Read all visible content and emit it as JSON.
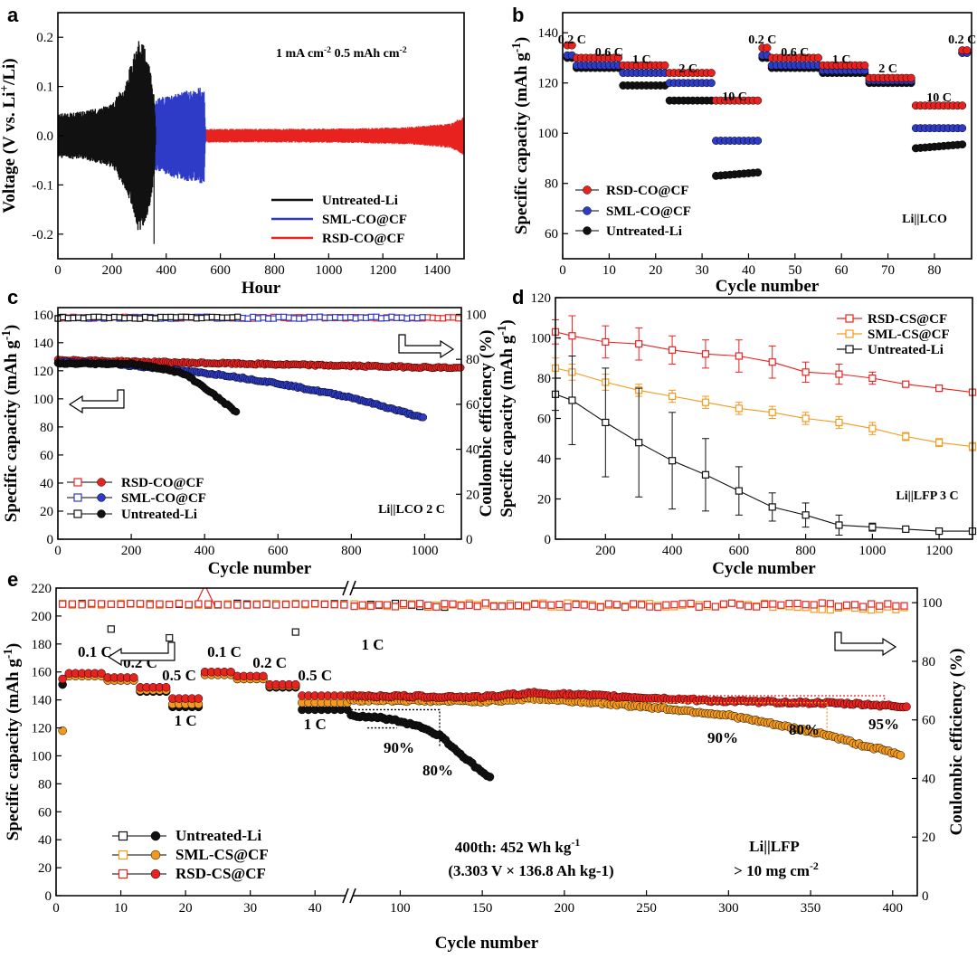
{
  "colors": {
    "red": "#e8231f",
    "blue": "#2e3bc7",
    "black": "#111111",
    "orange": "#f39a1e",
    "redText": "#e8231f",
    "orangeText": "#f39a1e"
  },
  "chart_data": [
    {
      "panel": "a",
      "type": "line",
      "title": "",
      "xlabel": "Hour",
      "ylabel": "Voltage (V vs. Li+/Li)",
      "xlim": [
        0,
        1500
      ],
      "ylim": [
        -0.25,
        0.25
      ],
      "xticks": [
        0,
        200,
        400,
        600,
        800,
        1000,
        1200,
        1400
      ],
      "yticks": [
        -0.2,
        -0.1,
        0.0,
        0.1,
        0.2
      ],
      "conditions": "1 mA cm-2 0.5 mAh cm-2",
      "series": [
        {
          "name": "Untreated-Li",
          "color": "#111111",
          "envelope": [
            [
              0,
              0.045
            ],
            [
              100,
              0.05
            ],
            [
              200,
              0.065
            ],
            [
              250,
              0.11
            ],
            [
              300,
              0.2
            ],
            [
              330,
              0.17
            ],
            [
              355,
              0.09
            ],
            [
              360,
              0.02
            ]
          ]
        },
        {
          "name": "SML-CO@CF",
          "color": "#2e3bc7",
          "envelope": [
            [
              0,
              0.03
            ],
            [
              200,
              0.035
            ],
            [
              330,
              0.06
            ],
            [
              360,
              0.075
            ],
            [
              420,
              0.085
            ],
            [
              500,
              0.095
            ],
            [
              540,
              0.1
            ],
            [
              545,
              0.01
            ]
          ]
        },
        {
          "name": "RSD-CO@CF",
          "color": "#e8231f",
          "envelope": [
            [
              0,
              0.015
            ],
            [
              400,
              0.014
            ],
            [
              800,
              0.014
            ],
            [
              1100,
              0.015
            ],
            [
              1300,
              0.018
            ],
            [
              1450,
              0.025
            ],
            [
              1500,
              0.04
            ]
          ]
        }
      ]
    },
    {
      "panel": "b",
      "type": "scatter",
      "title": "",
      "xlabel": "Cycle number",
      "ylabel": "Specific capacity (mAh g-1)",
      "xlim": [
        0,
        88
      ],
      "ylim": [
        50,
        148
      ],
      "xticks": [
        0,
        10,
        20,
        30,
        40,
        50,
        60,
        70,
        80
      ],
      "yticks": [
        60,
        80,
        100,
        120,
        140
      ],
      "annotation": "Li||LCO",
      "rate_labels": [
        "0.2 C",
        "0.6 C",
        "1 C",
        "2 C",
        "10 C",
        "0.2 C",
        "0.6 C",
        "1 C",
        "2 C",
        "10 C",
        "0.2 C"
      ],
      "series": [
        {
          "name": "RSD-CO@CF",
          "color": "#e8231f",
          "segments": [
            [
              1,
              2,
              135
            ],
            [
              3,
              12,
              130
            ],
            [
              13,
              22,
              127
            ],
            [
              23,
              32,
              124
            ],
            [
              33,
              42,
              113
            ],
            [
              43,
              44,
              134
            ],
            [
              45,
              55,
              130
            ],
            [
              56,
              65,
              127
            ],
            [
              66,
              75,
              122
            ],
            [
              76,
              86,
              111
            ],
            [
              86,
              87,
              133
            ]
          ]
        },
        {
          "name": "SML-CO@CF",
          "color": "#2e3bc7",
          "segments": [
            [
              1,
              2,
              131
            ],
            [
              3,
              12,
              127
            ],
            [
              13,
              22,
              124
            ],
            [
              23,
              32,
              120
            ],
            [
              33,
              42,
              97
            ],
            [
              43,
              44,
              131
            ],
            [
              45,
              55,
              127
            ],
            [
              56,
              65,
              125
            ],
            [
              66,
              75,
              121
            ],
            [
              76,
              86,
              102
            ],
            [
              86,
              87,
              132
            ]
          ]
        },
        {
          "name": "Untreated-Li",
          "color": "#111111",
          "segments": [
            [
              1,
              2,
              130
            ],
            [
              3,
              12,
              126
            ],
            [
              13,
              22,
              119
            ],
            [
              23,
              32,
              113
            ],
            [
              33,
              42,
              83
            ],
            [
              43,
              44,
              130
            ],
            [
              45,
              55,
              126
            ],
            [
              56,
              65,
              124
            ],
            [
              66,
              75,
              120
            ],
            [
              76,
              86,
              94
            ],
            [
              86,
              87,
              132
            ]
          ]
        }
      ]
    },
    {
      "panel": "c",
      "type": "scatter",
      "title": "",
      "xlabel": "Cycle number",
      "ylabel": "Specific capacity (mAh g-1)",
      "y2label": "Coulombic efficiency (%)",
      "xlim": [
        0,
        1100
      ],
      "ylim": [
        0,
        165
      ],
      "y2lim": [
        0,
        103
      ],
      "xticks": [
        0,
        200,
        400,
        600,
        800,
        1000
      ],
      "yticks": [
        0,
        20,
        40,
        60,
        80,
        100,
        120,
        140,
        160
      ],
      "y2ticks": [
        0,
        20,
        40,
        60,
        80,
        100
      ],
      "annotation": "Li||LCO 2 C",
      "series": [
        {
          "name": "RSD-CO@CF",
          "color": "#e8231f",
          "capacity": [
            [
              0,
              128
            ],
            [
              100,
              127
            ],
            [
              300,
              126
            ],
            [
              500,
              125
            ],
            [
              700,
              124
            ],
            [
              900,
              123
            ],
            [
              1100,
              122
            ]
          ],
          "ce_end": 1100
        },
        {
          "name": "SML-CO@CF",
          "color": "#2e3bc7",
          "capacity": [
            [
              0,
              126
            ],
            [
              150,
              125
            ],
            [
              300,
              121
            ],
            [
              450,
              117
            ],
            [
              600,
              111
            ],
            [
              800,
              101
            ],
            [
              950,
              90
            ],
            [
              1000,
              86
            ]
          ],
          "ce_end": 1000
        },
        {
          "name": "Untreated-Li",
          "color": "#111111",
          "capacity": [
            [
              0,
              125
            ],
            [
              200,
              125
            ],
            [
              300,
              121
            ],
            [
              350,
              117
            ],
            [
              400,
              108
            ],
            [
              450,
              98
            ],
            [
              490,
              90
            ]
          ],
          "ce_end": 500
        }
      ]
    },
    {
      "panel": "d",
      "type": "line",
      "title": "",
      "xlabel": "Cycle number",
      "ylabel": "Specific capacity (mAh g-1)",
      "xlim": [
        50,
        1300
      ],
      "ylim": [
        0,
        120
      ],
      "xticks": [
        200,
        400,
        600,
        800,
        1000,
        1200
      ],
      "yticks": [
        0,
        20,
        40,
        60,
        80,
        100,
        120
      ],
      "annotation": "Li||LFP 3 C",
      "series": [
        {
          "name": "RSD-CS@CF",
          "color": "#e8231f",
          "x": [
            50,
            100,
            200,
            300,
            400,
            500,
            600,
            700,
            800,
            900,
            1000,
            1100,
            1200,
            1300
          ],
          "y": [
            103,
            101,
            98,
            97,
            94,
            92,
            91,
            88,
            83,
            82,
            80,
            77,
            75,
            73
          ],
          "err": [
            6,
            10,
            8,
            8,
            7,
            7,
            8,
            8,
            5,
            5,
            3,
            1,
            1,
            1
          ]
        },
        {
          "name": "SML-CS@CF",
          "color": "#f39a1e",
          "x": [
            50,
            100,
            200,
            300,
            400,
            500,
            600,
            700,
            800,
            900,
            1000,
            1100,
            1200,
            1300
          ],
          "y": [
            85,
            83,
            78,
            74,
            71,
            68,
            65,
            63,
            60,
            58,
            55,
            51,
            48,
            46
          ],
          "err": [
            5,
            4,
            4,
            3,
            3,
            3,
            3,
            3,
            3,
            3,
            3,
            2,
            2,
            2
          ]
        },
        {
          "name": "Untreated-Li",
          "color": "#111111",
          "x": [
            50,
            100,
            200,
            300,
            400,
            500,
            600,
            700,
            800,
            900,
            1000,
            1100,
            1200,
            1300
          ],
          "y": [
            72,
            69,
            58,
            48,
            39,
            32,
            24,
            16,
            12,
            7,
            6,
            5,
            4,
            4
          ],
          "err": [
            8,
            22,
            27,
            27,
            24,
            18,
            12,
            7,
            6,
            5,
            2,
            1,
            1,
            1
          ]
        }
      ]
    },
    {
      "panel": "e",
      "type": "scatter",
      "title": "",
      "xlabel": "Cycle number",
      "ylabel": "Specific capacity (mAh g-1)",
      "y2label": "Coulombic efficiency (%)",
      "xlim_left": [
        0,
        45
      ],
      "xlim_right": [
        70,
        415
      ],
      "ylim": [
        0,
        220
      ],
      "y2lim": [
        0,
        105
      ],
      "xticks_left": [
        0,
        10,
        20,
        30,
        40
      ],
      "xticks_right": [
        100,
        150,
        200,
        250,
        300,
        350,
        400
      ],
      "yticks": [
        0,
        20,
        40,
        60,
        80,
        100,
        120,
        140,
        160,
        180,
        200,
        220
      ],
      "y2ticks": [
        0,
        20,
        40,
        60,
        80,
        100
      ],
      "annotation": [
        "Li||LFP",
        "> 10 mg cm-2"
      ],
      "energy": [
        "400th: 452 Wh kg-1",
        "(3.303 V × 136.8 Ah kg-1)"
      ],
      "rate_labels_top": [
        "0.1 C",
        "0.2 C",
        "0.5 C",
        "0.1 C",
        "0.2 C",
        "0.5 C",
        "1 C"
      ],
      "rate_labels_bottom": [
        "1 C",
        "1 C"
      ],
      "retention": {
        "untreated": [
          "90%",
          "80%"
        ],
        "sml": [
          "90%",
          "80%"
        ],
        "rsd": "95%"
      },
      "series": [
        {
          "name": "Untreated-Li",
          "color": "#111111",
          "segments": [
            [
              1,
              1,
              151
            ],
            [
              2,
              7,
              158
            ],
            [
              8,
              12,
              154
            ],
            [
              13,
              17,
              146
            ],
            [
              18,
              22,
              135
            ],
            [
              23,
              27,
              158
            ],
            [
              28,
              32,
              155
            ],
            [
              33,
              37,
              149
            ],
            [
              38,
              45,
              133
            ]
          ],
          "tail": [
            [
              70,
              129
            ],
            [
              90,
              127
            ],
            [
              110,
              122
            ],
            [
              125,
              114
            ],
            [
              135,
              103
            ],
            [
              145,
              93
            ],
            [
              155,
              84
            ]
          ]
        },
        {
          "name": "SML-CS@CF",
          "color": "#f39a1e",
          "segments": [
            [
              1,
              1,
              118
            ],
            [
              2,
              7,
              157
            ],
            [
              8,
              12,
              154
            ],
            [
              13,
              17,
              147
            ],
            [
              18,
              22,
              137
            ],
            [
              23,
              27,
              158
            ],
            [
              28,
              32,
              155
            ],
            [
              33,
              37,
              150
            ],
            [
              38,
              45,
              138
            ]
          ],
          "tail": [
            [
              70,
              140
            ],
            [
              150,
              139
            ],
            [
              180,
              141
            ],
            [
              220,
              138
            ],
            [
              260,
              134
            ],
            [
              300,
              129
            ],
            [
              330,
              122
            ],
            [
              360,
              115
            ],
            [
              380,
              108
            ],
            [
              395,
              104
            ],
            [
              405,
              100
            ]
          ]
        },
        {
          "name": "RSD-CS@CF",
          "color": "#e8231f",
          "segments": [
            [
              1,
              1,
              155
            ],
            [
              2,
              7,
              159
            ],
            [
              8,
              12,
              156
            ],
            [
              13,
              17,
              149
            ],
            [
              18,
              22,
              141
            ],
            [
              23,
              27,
              160
            ],
            [
              28,
              32,
              157
            ],
            [
              33,
              37,
              151
            ],
            [
              38,
              45,
              143
            ]
          ],
          "tail": [
            [
              70,
              143
            ],
            [
              150,
              142
            ],
            [
              180,
              145
            ],
            [
              220,
              143
            ],
            [
              260,
              141
            ],
            [
              300,
              139
            ],
            [
              350,
              138
            ],
            [
              380,
              137
            ],
            [
              410,
              135
            ]
          ]
        }
      ]
    }
  ]
}
